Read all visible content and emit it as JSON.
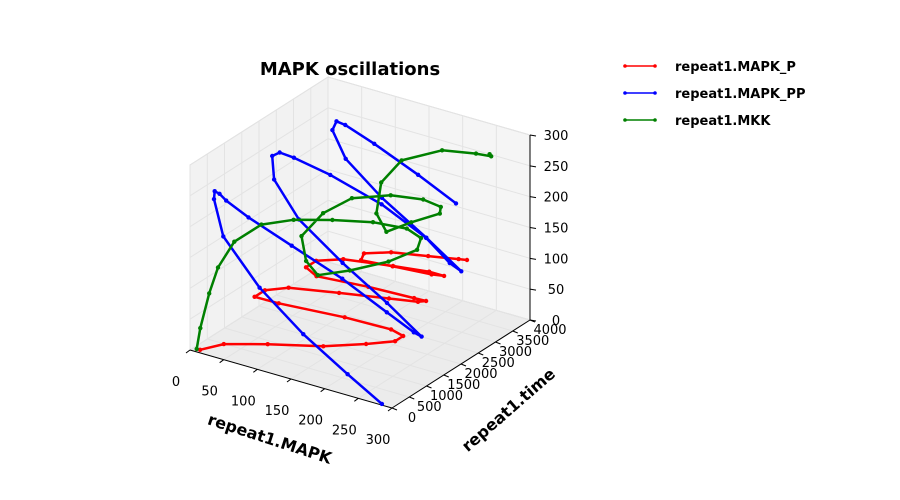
{
  "colors": {
    "MAPK_P": "#ff0000",
    "MAPK_PP": "#0000ff",
    "MKK": "#008000"
  },
  "chart_data": {
    "type": "line",
    "projection": "3d",
    "title": "MAPK oscillations",
    "xlabel": "repeat1.MAPK",
    "ylabel": "repeat1.time",
    "zlabel": "",
    "xlim": [
      0,
      300
    ],
    "ylim": [
      0,
      4000
    ],
    "zlim": [
      0,
      300
    ],
    "xticks": [
      "0",
      "50",
      "100",
      "150",
      "200",
      "250",
      "300"
    ],
    "yticks": [
      "0",
      "500",
      "1000",
      "1500",
      "2000",
      "2500",
      "3000",
      "3500",
      "4000"
    ],
    "zticks": [
      "0",
      "50",
      "100",
      "150",
      "200",
      "250",
      "300"
    ],
    "grid": true,
    "legend": "outside top-right",
    "marker": "dot",
    "series": [
      {
        "name": "repeat1.MAPK_P",
        "color": "#ff0000",
        "x": [
          15,
          40,
          100,
          180,
          240,
          280,
          290,
          270,
          200,
          100,
          55,
          60,
          90,
          160,
          230,
          270,
          280,
          260,
          190,
          110,
          80,
          85,
          120,
          190,
          240,
          260,
          240,
          180,
          130,
          120,
          150,
          200,
          240,
          250
        ],
        "y": [
          0,
          200,
          300,
          350,
          420,
          480,
          520,
          560,
          580,
          620,
          800,
          1000,
          1100,
          1200,
          1280,
          1340,
          1380,
          1420,
          1460,
          1520,
          1800,
          2000,
          2100,
          2180,
          2250,
          2290,
          2320,
          2360,
          2420,
          2700,
          2900,
          3000,
          3100,
          3150
        ],
        "z": [
          5,
          15,
          30,
          50,
          70,
          85,
          95,
          98,
          95,
          85,
          75,
          80,
          90,
          100,
          110,
          115,
          118,
          115,
          110,
          100,
          95,
          100,
          110,
          118,
          122,
          120,
          115,
          108,
          100,
          98,
          102,
          108,
          112,
          112
        ]
      },
      {
        "name": "repeat1.MAPK_PP",
        "color": "#0000ff",
        "x": [
          285,
          230,
          160,
          90,
          30,
          10,
          8,
          12,
          20,
          50,
          110,
          180,
          240,
          275,
          285,
          230,
          160,
          90,
          45,
          35,
          42,
          60,
          110,
          180,
          240,
          270,
          285,
          230,
          160,
          100,
          70,
          70,
          80,
          120,
          180,
          230
        ],
        "y": [
          0,
          80,
          160,
          260,
          380,
          500,
          560,
          620,
          660,
          720,
          800,
          900,
          1020,
          1120,
          1150,
          1220,
          1300,
          1400,
          1560,
          1700,
          1780,
          1840,
          1920,
          2040,
          2160,
          2260,
          2300,
          2360,
          2440,
          2560,
          2760,
          2880,
          2940,
          3000,
          3100,
          3220
        ],
        "z": [
          2,
          30,
          70,
          120,
          180,
          230,
          240,
          235,
          225,
          205,
          175,
          140,
          100,
          75,
          70,
          105,
          145,
          190,
          235,
          265,
          270,
          265,
          250,
          220,
          180,
          145,
          135,
          170,
          210,
          250,
          280,
          290,
          285,
          265,
          230,
          195
        ]
      },
      {
        "name": "repeat1.MKK",
        "color": "#008000",
        "x": [
          10,
          5,
          8,
          15,
          30,
          60,
          100,
          150,
          200,
          240,
          255,
          245,
          200,
          140,
          90,
          70,
          60,
          85,
          120,
          170,
          210,
          230,
          225,
          180,
          140,
          120,
          120,
          140,
          190,
          230,
          245,
          240
        ],
        "y": [
          0,
          200,
          400,
          520,
          700,
          900,
          1050,
          1200,
          1400,
          1600,
          1720,
          1800,
          1850,
          1900,
          1950,
          2000,
          2060,
          2200,
          2350,
          2500,
          2660,
          2780,
          2850,
          2900,
          2960,
          3060,
          3200,
          3400,
          3600,
          3800,
          3950,
          4000
        ],
        "z": [
          5,
          30,
          80,
          120,
          160,
          190,
          205,
          215,
          220,
          215,
          200,
          175,
          140,
          105,
          80,
          95,
          130,
          170,
          200,
          215,
          215,
          205,
          190,
          160,
          130,
          150,
          195,
          230,
          255,
          255,
          250,
          250
        ]
      }
    ]
  }
}
